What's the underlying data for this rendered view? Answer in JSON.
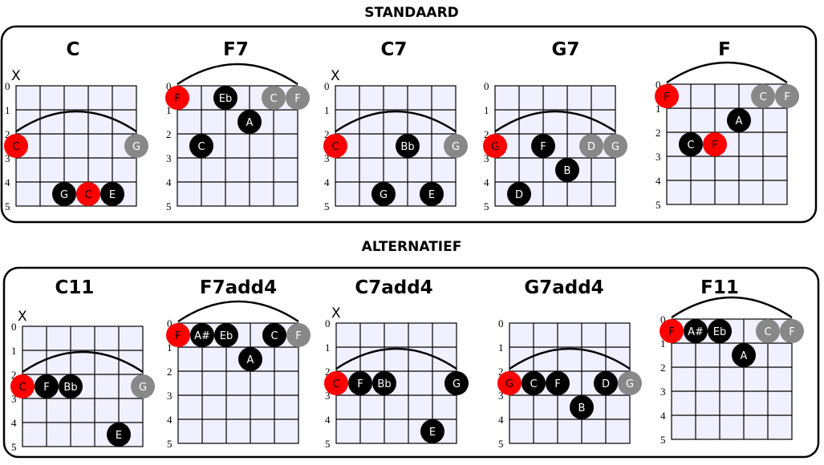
{
  "sections": [
    {
      "title": "STANDAARD",
      "chords": [
        {
          "name": "C",
          "muted_first": true,
          "arc_fret": 2,
          "notes": [
            {
              "string": 0,
              "fret": 3,
              "note": "C",
              "type": "root"
            },
            {
              "string": 5,
              "fret": 3,
              "note": "G",
              "type": "gray"
            },
            {
              "string": 2,
              "fret": 5,
              "note": "G",
              "type": "black"
            },
            {
              "string": 3,
              "fret": 5,
              "note": "C",
              "type": "root"
            },
            {
              "string": 4,
              "fret": 5,
              "note": "E",
              "type": "black"
            }
          ]
        },
        {
          "name": "F7",
          "muted_first": false,
          "arc_fret": 0,
          "notes": [
            {
              "string": 0,
              "fret": 1,
              "note": "F",
              "type": "root"
            },
            {
              "string": 2,
              "fret": 1,
              "note": "Eb",
              "type": "black"
            },
            {
              "string": 4,
              "fret": 1,
              "note": "C",
              "type": "gray"
            },
            {
              "string": 5,
              "fret": 1,
              "note": "F",
              "type": "gray"
            },
            {
              "string": 3,
              "fret": 2,
              "note": "A",
              "type": "black"
            },
            {
              "string": 1,
              "fret": 3,
              "note": "C",
              "type": "black"
            }
          ]
        },
        {
          "name": "C7",
          "muted_first": true,
          "arc_fret": 2,
          "notes": [
            {
              "string": 0,
              "fret": 3,
              "note": "C",
              "type": "root"
            },
            {
              "string": 3,
              "fret": 3,
              "note": "Bb",
              "type": "black"
            },
            {
              "string": 5,
              "fret": 3,
              "note": "G",
              "type": "gray"
            },
            {
              "string": 2,
              "fret": 5,
              "note": "G",
              "type": "black"
            },
            {
              "string": 4,
              "fret": 5,
              "note": "E",
              "type": "black"
            }
          ]
        },
        {
          "name": "G7",
          "muted_first": false,
          "arc_fret": 2,
          "notes": [
            {
              "string": 0,
              "fret": 3,
              "note": "G",
              "type": "root"
            },
            {
              "string": 2,
              "fret": 3,
              "note": "F",
              "type": "black"
            },
            {
              "string": 4,
              "fret": 3,
              "note": "D",
              "type": "gray"
            },
            {
              "string": 5,
              "fret": 3,
              "note": "G",
              "type": "gray"
            },
            {
              "string": 3,
              "fret": 4,
              "note": "B",
              "type": "black"
            },
            {
              "string": 1,
              "fret": 5,
              "note": "D",
              "type": "black"
            }
          ]
        },
        {
          "name": "F",
          "muted_first": false,
          "arc_fret": 0,
          "notes": [
            {
              "string": 0,
              "fret": 1,
              "note": "F",
              "type": "root"
            },
            {
              "string": 4,
              "fret": 1,
              "note": "C",
              "type": "gray"
            },
            {
              "string": 5,
              "fret": 1,
              "note": "F",
              "type": "gray"
            },
            {
              "string": 3,
              "fret": 2,
              "note": "A",
              "type": "black"
            },
            {
              "string": 1,
              "fret": 3,
              "note": "C",
              "type": "black"
            },
            {
              "string": 2,
              "fret": 3,
              "note": "F",
              "type": "root"
            }
          ]
        }
      ]
    },
    {
      "title": "ALTERNATIEF",
      "chords": [
        {
          "name": "C11",
          "muted_first": true,
          "arc_fret": 2,
          "notes": [
            {
              "string": 0,
              "fret": 3,
              "note": "C",
              "type": "root"
            },
            {
              "string": 1,
              "fret": 3,
              "note": "F",
              "type": "black"
            },
            {
              "string": 2,
              "fret": 3,
              "note": "Bb",
              "type": "black"
            },
            {
              "string": 5,
              "fret": 3,
              "note": "G",
              "type": "gray"
            },
            {
              "string": 4,
              "fret": 5,
              "note": "E",
              "type": "black"
            }
          ]
        },
        {
          "name": "F7add4",
          "muted_first": false,
          "arc_fret": 0,
          "notes": [
            {
              "string": 0,
              "fret": 1,
              "note": "F",
              "type": "root"
            },
            {
              "string": 1,
              "fret": 1,
              "note": "A#",
              "type": "black"
            },
            {
              "string": 2,
              "fret": 1,
              "note": "Eb",
              "type": "black"
            },
            {
              "string": 4,
              "fret": 1,
              "note": "C",
              "type": "black"
            },
            {
              "string": 5,
              "fret": 1,
              "note": "F",
              "type": "gray"
            },
            {
              "string": 3,
              "fret": 2,
              "note": "A",
              "type": "black"
            }
          ]
        },
        {
          "name": "C7add4",
          "muted_first": true,
          "arc_fret": 2,
          "notes": [
            {
              "string": 0,
              "fret": 3,
              "note": "C",
              "type": "root"
            },
            {
              "string": 1,
              "fret": 3,
              "note": "F",
              "type": "black"
            },
            {
              "string": 2,
              "fret": 3,
              "note": "Bb",
              "type": "black"
            },
            {
              "string": 5,
              "fret": 3,
              "note": "G",
              "type": "black"
            },
            {
              "string": 4,
              "fret": 5,
              "note": "E",
              "type": "black"
            }
          ]
        },
        {
          "name": "G7add4",
          "muted_first": false,
          "arc_fret": 2,
          "notes": [
            {
              "string": 0,
              "fret": 3,
              "note": "G",
              "type": "root"
            },
            {
              "string": 1,
              "fret": 3,
              "note": "C",
              "type": "black"
            },
            {
              "string": 2,
              "fret": 3,
              "note": "F",
              "type": "black"
            },
            {
              "string": 4,
              "fret": 3,
              "note": "D",
              "type": "black"
            },
            {
              "string": 5,
              "fret": 3,
              "note": "G",
              "type": "gray"
            },
            {
              "string": 3,
              "fret": 4,
              "note": "B",
              "type": "black"
            }
          ]
        },
        {
          "name": "F11",
          "muted_first": false,
          "arc_fret": 0,
          "notes": [
            {
              "string": 0,
              "fret": 1,
              "note": "F",
              "type": "root"
            },
            {
              "string": 1,
              "fret": 1,
              "note": "A#",
              "type": "black"
            },
            {
              "string": 2,
              "fret": 1,
              "note": "Eb",
              "type": "black"
            },
            {
              "string": 4,
              "fret": 1,
              "note": "C",
              "type": "gray"
            },
            {
              "string": 5,
              "fret": 1,
              "note": "F",
              "type": "gray"
            },
            {
              "string": 3,
              "fret": 2,
              "note": "A",
              "type": "black"
            }
          ]
        }
      ]
    }
  ],
  "mute_symbol": "X",
  "fret_labels": [
    "0",
    "1",
    "2",
    "3",
    "4",
    "5"
  ],
  "colors": {
    "root": "#ff0000",
    "black": "#000000",
    "gray": "#888888",
    "grid_fill": "#f0f0ff"
  }
}
